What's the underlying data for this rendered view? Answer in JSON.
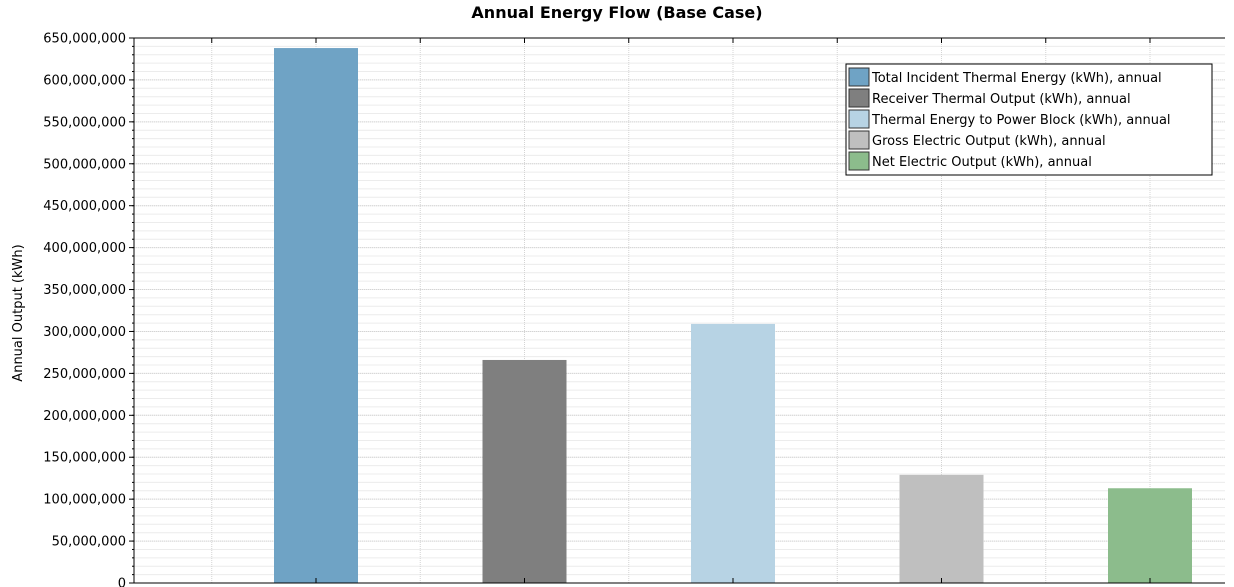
{
  "chart_data": {
    "type": "bar",
    "title": "Annual Energy Flow (Base Case)",
    "xlabel": "",
    "ylabel": "Annual Output (kWh)",
    "ylim": [
      0,
      650000000
    ],
    "ytick_step": 50000000,
    "y_tick_labels": [
      "0",
      "50,000,000",
      "100,000,000",
      "150,000,000",
      "200,000,000",
      "250,000,000",
      "300,000,000",
      "350,000,000",
      "400,000,000",
      "450,000,000",
      "500,000,000",
      "550,000,000",
      "600,000,000",
      "650,000,000"
    ],
    "grid": true,
    "legend_position": "top-right",
    "series": [
      {
        "name": "Total Incident Thermal Energy (kWh), annual",
        "value": 638000000,
        "color": "#6fa3c5"
      },
      {
        "name": "Receiver Thermal Output (kWh), annual",
        "value": 266000000,
        "color": "#7f7f7f"
      },
      {
        "name": "Thermal Energy to Power Block (kWh), annual",
        "value": 309000000,
        "color": "#b7d3e4"
      },
      {
        "name": "Gross Electric Output (kWh), annual",
        "value": 129000000,
        "color": "#bfbfbf"
      },
      {
        "name": "Net Electric Output (kWh), annual",
        "value": 113000000,
        "color": "#8cbc8c"
      }
    ]
  }
}
